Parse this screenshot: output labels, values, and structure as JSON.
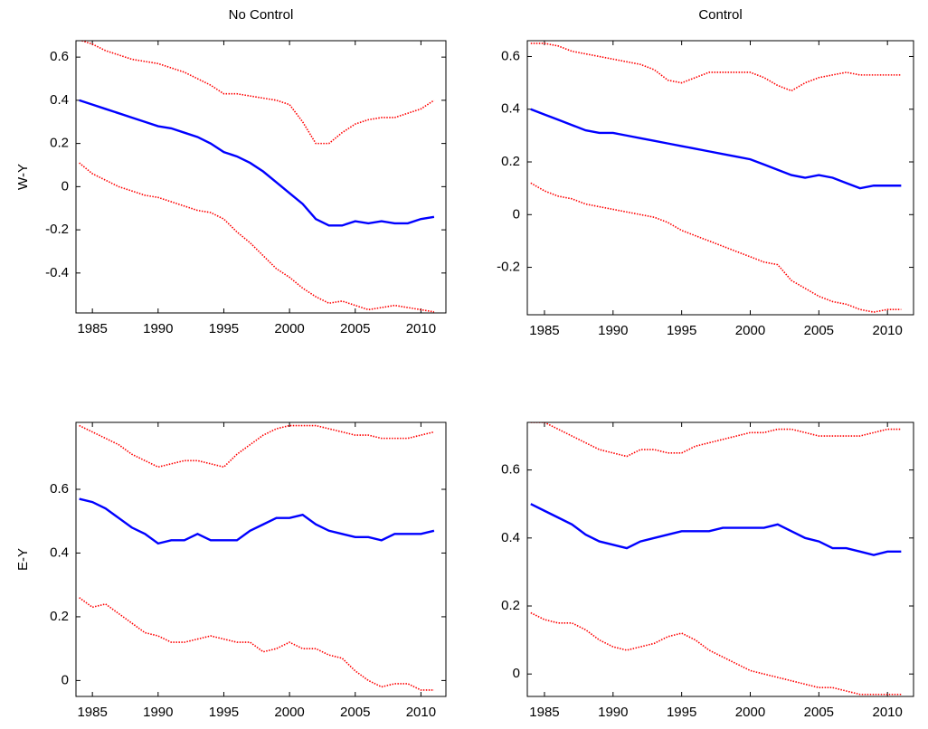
{
  "chart_data": [
    {
      "type": "line",
      "title": "No Control",
      "ylabel": "W-Y",
      "x": [
        1984,
        1985,
        1986,
        1987,
        1988,
        1989,
        1990,
        1991,
        1992,
        1993,
        1994,
        1995,
        1996,
        1997,
        1998,
        1999,
        2000,
        2001,
        2002,
        2003,
        2004,
        2005,
        2006,
        2007,
        2008,
        2009,
        2010,
        2011
      ],
      "series": [
        {
          "color": "#ff0000",
          "style": "dotted",
          "values": [
            0.68,
            0.66,
            0.63,
            0.61,
            0.59,
            0.58,
            0.57,
            0.55,
            0.53,
            0.5,
            0.47,
            0.43,
            0.43,
            0.42,
            0.41,
            0.4,
            0.38,
            0.3,
            0.2,
            0.2,
            0.25,
            0.29,
            0.31,
            0.32,
            0.32,
            0.34,
            0.36,
            0.4
          ]
        },
        {
          "color": "#0000ff",
          "style": "solid",
          "values": [
            0.4,
            0.38,
            0.36,
            0.34,
            0.32,
            0.3,
            0.28,
            0.27,
            0.25,
            0.23,
            0.2,
            0.16,
            0.14,
            0.11,
            0.07,
            0.02,
            -0.03,
            -0.08,
            -0.15,
            -0.18,
            -0.18,
            -0.16,
            -0.17,
            -0.16,
            -0.17,
            -0.17,
            -0.15,
            -0.14
          ]
        },
        {
          "color": "#ff0000",
          "style": "dotted",
          "values": [
            0.11,
            0.06,
            0.03,
            0.0,
            -0.02,
            -0.04,
            -0.05,
            -0.07,
            -0.09,
            -0.11,
            -0.12,
            -0.15,
            -0.21,
            -0.26,
            -0.32,
            -0.38,
            -0.42,
            -0.47,
            -0.51,
            -0.54,
            -0.53,
            -0.55,
            -0.57,
            -0.56,
            -0.55,
            -0.56,
            -0.57,
            -0.58
          ]
        }
      ],
      "xlim": [
        1983.75,
        2011.9
      ],
      "xticks": [
        1985,
        1990,
        1995,
        2000,
        2005,
        2010
      ],
      "ylim": [
        -0.585,
        0.676
      ],
      "yticks": [
        -0.4,
        -0.2,
        0,
        0.2,
        0.4,
        0.6
      ]
    },
    {
      "type": "line",
      "title": "Control",
      "x": [
        1984,
        1985,
        1986,
        1987,
        1988,
        1989,
        1990,
        1991,
        1992,
        1993,
        1994,
        1995,
        1996,
        1997,
        1998,
        1999,
        2000,
        2001,
        2002,
        2003,
        2004,
        2005,
        2006,
        2007,
        2008,
        2009,
        2010,
        2011
      ],
      "series": [
        {
          "color": "#ff0000",
          "style": "dotted",
          "values": [
            0.65,
            0.65,
            0.64,
            0.62,
            0.61,
            0.6,
            0.59,
            0.58,
            0.57,
            0.55,
            0.51,
            0.5,
            0.52,
            0.54,
            0.54,
            0.54,
            0.54,
            0.52,
            0.49,
            0.47,
            0.5,
            0.52,
            0.53,
            0.54,
            0.53,
            0.53,
            0.53,
            0.53
          ]
        },
        {
          "color": "#0000ff",
          "style": "solid",
          "values": [
            0.4,
            0.38,
            0.36,
            0.34,
            0.32,
            0.31,
            0.31,
            0.3,
            0.29,
            0.28,
            0.27,
            0.26,
            0.25,
            0.24,
            0.23,
            0.22,
            0.21,
            0.19,
            0.17,
            0.15,
            0.14,
            0.15,
            0.14,
            0.12,
            0.1,
            0.11,
            0.11,
            0.11
          ]
        },
        {
          "color": "#ff0000",
          "style": "dotted",
          "values": [
            0.12,
            0.09,
            0.07,
            0.06,
            0.04,
            0.03,
            0.02,
            0.01,
            0.0,
            -0.01,
            -0.03,
            -0.06,
            -0.08,
            -0.1,
            -0.12,
            -0.14,
            -0.16,
            -0.18,
            -0.19,
            -0.25,
            -0.28,
            -0.31,
            -0.33,
            -0.34,
            -0.36,
            -0.37,
            -0.36,
            -0.36
          ]
        }
      ],
      "xlim": [
        1983.75,
        2011.9
      ],
      "xticks": [
        1985,
        1990,
        1995,
        2000,
        2005,
        2010
      ],
      "ylim": [
        -0.38,
        0.66
      ],
      "yticks": [
        -0.2,
        0,
        0.2,
        0.4,
        0.6
      ]
    },
    {
      "type": "line",
      "ylabel": "E-Y",
      "x": [
        1984,
        1985,
        1986,
        1987,
        1988,
        1989,
        1990,
        1991,
        1992,
        1993,
        1994,
        1995,
        1996,
        1997,
        1998,
        1999,
        2000,
        2001,
        2002,
        2003,
        2004,
        2005,
        2006,
        2007,
        2008,
        2009,
        2010,
        2011
      ],
      "series": [
        {
          "color": "#ff0000",
          "style": "dotted",
          "values": [
            0.8,
            0.78,
            0.76,
            0.74,
            0.71,
            0.69,
            0.67,
            0.68,
            0.69,
            0.69,
            0.68,
            0.67,
            0.71,
            0.74,
            0.77,
            0.79,
            0.8,
            0.8,
            0.8,
            0.79,
            0.78,
            0.77,
            0.77,
            0.76,
            0.76,
            0.76,
            0.77,
            0.78
          ]
        },
        {
          "color": "#0000ff",
          "style": "solid",
          "values": [
            0.57,
            0.56,
            0.54,
            0.51,
            0.48,
            0.46,
            0.43,
            0.44,
            0.44,
            0.46,
            0.44,
            0.44,
            0.44,
            0.47,
            0.49,
            0.51,
            0.51,
            0.52,
            0.49,
            0.47,
            0.46,
            0.45,
            0.45,
            0.44,
            0.46,
            0.46,
            0.46,
            0.47
          ]
        },
        {
          "color": "#ff0000",
          "style": "dotted",
          "values": [
            0.26,
            0.23,
            0.24,
            0.21,
            0.18,
            0.15,
            0.14,
            0.12,
            0.12,
            0.13,
            0.14,
            0.13,
            0.12,
            0.12,
            0.09,
            0.1,
            0.12,
            0.1,
            0.1,
            0.08,
            0.07,
            0.03,
            0.0,
            -0.02,
            -0.01,
            -0.01,
            -0.03,
            -0.03
          ]
        }
      ],
      "xlim": [
        1983.75,
        2011.9
      ],
      "xticks": [
        1985,
        1990,
        1995,
        2000,
        2005,
        2010
      ],
      "ylim": [
        -0.05,
        0.81
      ],
      "yticks": [
        0,
        0.2,
        0.4,
        0.6
      ]
    },
    {
      "type": "line",
      "x": [
        1984,
        1985,
        1986,
        1987,
        1988,
        1989,
        1990,
        1991,
        1992,
        1993,
        1994,
        1995,
        1996,
        1997,
        1998,
        1999,
        2000,
        2001,
        2002,
        2003,
        2004,
        2005,
        2006,
        2007,
        2008,
        2009,
        2010,
        2011
      ],
      "series": [
        {
          "color": "#ff0000",
          "style": "dotted",
          "values": [
            0.74,
            0.74,
            0.72,
            0.7,
            0.68,
            0.66,
            0.65,
            0.64,
            0.66,
            0.66,
            0.65,
            0.65,
            0.67,
            0.68,
            0.69,
            0.7,
            0.71,
            0.71,
            0.72,
            0.72,
            0.71,
            0.7,
            0.7,
            0.7,
            0.7,
            0.71,
            0.72,
            0.72
          ]
        },
        {
          "color": "#0000ff",
          "style": "solid",
          "values": [
            0.5,
            0.48,
            0.46,
            0.44,
            0.41,
            0.39,
            0.38,
            0.37,
            0.39,
            0.4,
            0.41,
            0.42,
            0.42,
            0.42,
            0.43,
            0.43,
            0.43,
            0.43,
            0.44,
            0.42,
            0.4,
            0.39,
            0.37,
            0.37,
            0.36,
            0.35,
            0.36,
            0.36
          ]
        },
        {
          "color": "#ff0000",
          "style": "dotted",
          "values": [
            0.18,
            0.16,
            0.15,
            0.15,
            0.13,
            0.1,
            0.08,
            0.07,
            0.08,
            0.09,
            0.11,
            0.12,
            0.1,
            0.07,
            0.05,
            0.03,
            0.01,
            0.0,
            -0.01,
            -0.02,
            -0.03,
            -0.04,
            -0.04,
            -0.05,
            -0.06,
            -0.06,
            -0.06,
            -0.06
          ]
        }
      ],
      "xlim": [
        1983.75,
        2011.9
      ],
      "xticks": [
        1985,
        1990,
        1995,
        2000,
        2005,
        2010
      ],
      "ylim": [
        -0.066,
        0.74
      ],
      "yticks": [
        0,
        0.2,
        0.4,
        0.6
      ]
    }
  ]
}
